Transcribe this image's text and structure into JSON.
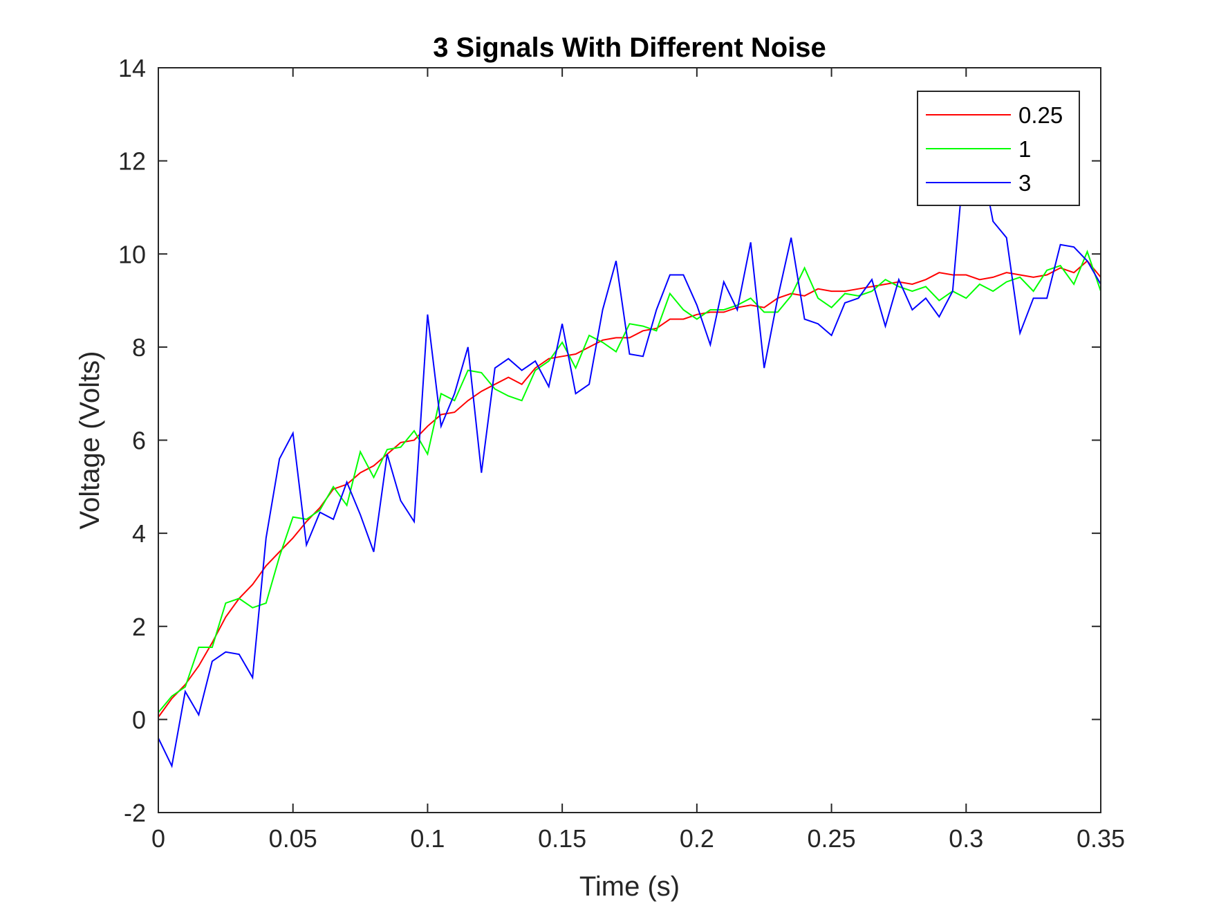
{
  "chart_data": {
    "type": "line",
    "title": "3 Signals With Different Noise",
    "xlabel": "Time (s)",
    "ylabel": "Voltage (Volts)",
    "xlim": [
      0,
      0.35
    ],
    "ylim": [
      -2,
      14
    ],
    "xticks": [
      0,
      0.05,
      0.1,
      0.15,
      0.2,
      0.25,
      0.3,
      0.35
    ],
    "xtick_labels": [
      "0",
      "0.05",
      "0.1",
      "0.15",
      "0.2",
      "0.25",
      "0.3",
      "0.35"
    ],
    "yticks": [
      -2,
      0,
      2,
      4,
      6,
      8,
      10,
      12,
      14
    ],
    "ytick_labels": [
      "-2",
      "0",
      "2",
      "4",
      "6",
      "8",
      "10",
      "12",
      "14"
    ],
    "grid": false,
    "legend_position": "top-right",
    "x": [
      0,
      0.005,
      0.01,
      0.015,
      0.02,
      0.025,
      0.03,
      0.035,
      0.04,
      0.045,
      0.05,
      0.055,
      0.06,
      0.065,
      0.07,
      0.075,
      0.08,
      0.085,
      0.09,
      0.095,
      0.1,
      0.105,
      0.11,
      0.115,
      0.12,
      0.125,
      0.13,
      0.135,
      0.14,
      0.145,
      0.15,
      0.155,
      0.16,
      0.165,
      0.17,
      0.175,
      0.18,
      0.185,
      0.19,
      0.195,
      0.2,
      0.205,
      0.21,
      0.215,
      0.22,
      0.225,
      0.23,
      0.235,
      0.24,
      0.245,
      0.25,
      0.255,
      0.26,
      0.265,
      0.27,
      0.275,
      0.28,
      0.285,
      0.29,
      0.295,
      0.3,
      0.305,
      0.31,
      0.315,
      0.32,
      0.325,
      0.33,
      0.335,
      0.34,
      0.345,
      0.35
    ],
    "series": [
      {
        "name": "0.25",
        "color": "#ff0000",
        "values": [
          0.05,
          0.45,
          0.75,
          1.15,
          1.65,
          2.2,
          2.6,
          2.9,
          3.3,
          3.6,
          3.9,
          4.25,
          4.55,
          4.95,
          5.05,
          5.3,
          5.45,
          5.7,
          5.95,
          6.0,
          6.3,
          6.55,
          6.6,
          6.85,
          7.05,
          7.2,
          7.35,
          7.2,
          7.55,
          7.75,
          7.8,
          7.85,
          8.0,
          8.15,
          8.2,
          8.2,
          8.35,
          8.4,
          8.6,
          8.6,
          8.7,
          8.75,
          8.75,
          8.85,
          8.9,
          8.85,
          9.05,
          9.15,
          9.1,
          9.25,
          9.2,
          9.2,
          9.25,
          9.3,
          9.35,
          9.4,
          9.35,
          9.45,
          9.6,
          9.55,
          9.55,
          9.45,
          9.5,
          9.6,
          9.55,
          9.5,
          9.55,
          9.7,
          9.6,
          9.85,
          9.5
        ]
      },
      {
        "name": "1",
        "color": "#00ff00",
        "values": [
          0.15,
          0.5,
          0.7,
          1.55,
          1.55,
          2.5,
          2.6,
          2.4,
          2.5,
          3.5,
          4.35,
          4.3,
          4.5,
          5.0,
          4.6,
          5.75,
          5.2,
          5.8,
          5.85,
          6.2,
          5.7,
          7.0,
          6.85,
          7.5,
          7.45,
          7.1,
          6.95,
          6.85,
          7.5,
          7.7,
          8.1,
          7.55,
          8.25,
          8.1,
          7.9,
          8.5,
          8.45,
          8.35,
          9.15,
          8.8,
          8.6,
          8.8,
          8.8,
          8.9,
          9.05,
          8.75,
          8.75,
          9.1,
          9.7,
          9.05,
          8.85,
          9.15,
          9.1,
          9.2,
          9.45,
          9.3,
          9.2,
          9.3,
          9.0,
          9.2,
          9.05,
          9.35,
          9.2,
          9.4,
          9.5,
          9.2,
          9.65,
          9.75,
          9.35,
          10.05,
          9.2
        ]
      },
      {
        "name": "3",
        "color": "#0000ff",
        "values": [
          -0.4,
          -1.0,
          0.6,
          0.1,
          1.25,
          1.45,
          1.4,
          0.9,
          3.9,
          5.6,
          6.15,
          3.75,
          4.45,
          4.3,
          5.1,
          4.4,
          3.6,
          5.7,
          4.7,
          4.25,
          8.7,
          6.3,
          7.0,
          8.0,
          5.3,
          7.55,
          7.75,
          7.5,
          7.7,
          7.15,
          8.5,
          7.0,
          7.2,
          8.8,
          9.85,
          7.85,
          7.8,
          8.8,
          9.55,
          9.55,
          8.9,
          8.05,
          9.4,
          8.8,
          10.25,
          7.55,
          9.05,
          10.35,
          8.6,
          8.5,
          8.25,
          8.95,
          9.05,
          9.45,
          8.45,
          9.45,
          8.8,
          9.05,
          8.65,
          9.2,
          12.5,
          12.2,
          10.7,
          10.35,
          8.3,
          9.05,
          9.05,
          10.2,
          10.15,
          9.85,
          9.35
        ]
      }
    ]
  }
}
